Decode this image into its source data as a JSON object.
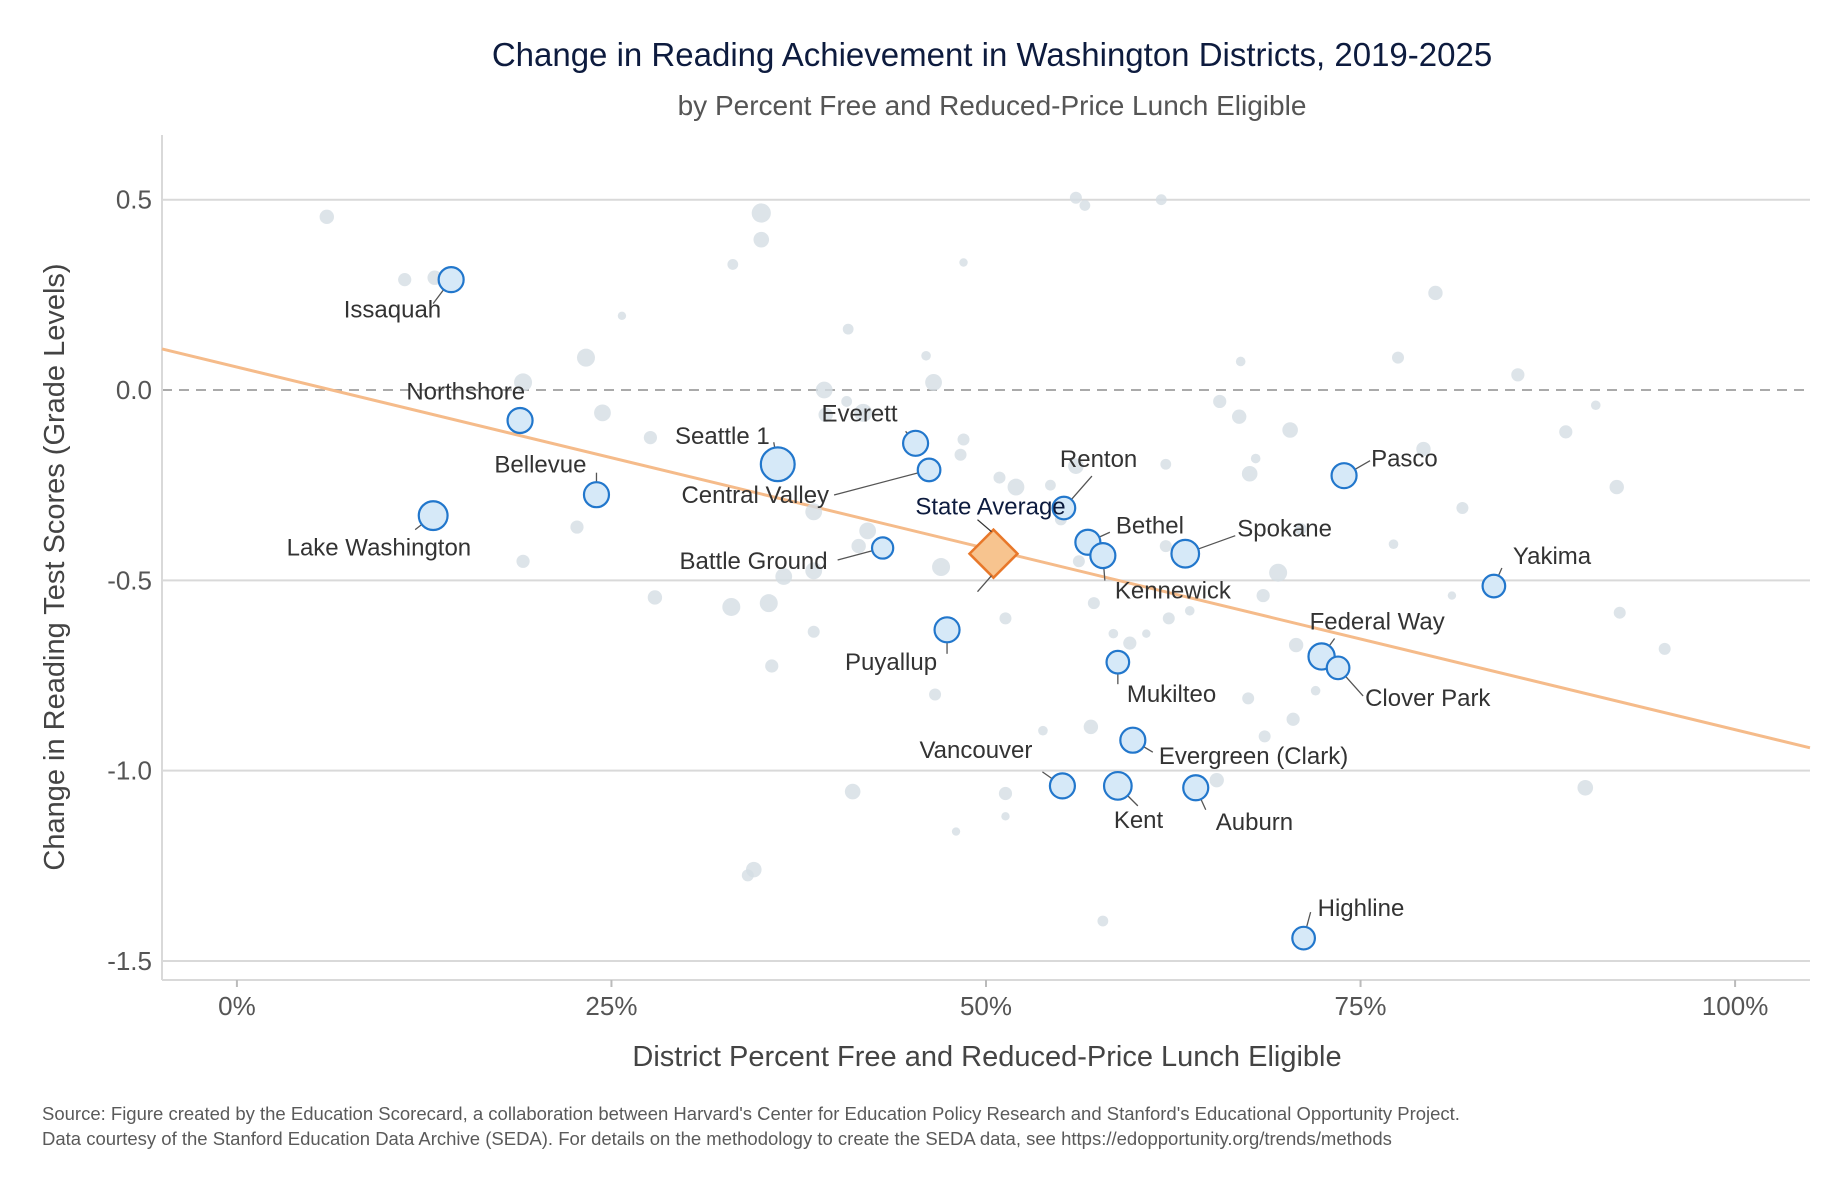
{
  "title": "Change in Reading Achievement in Washington Districts, 2019-2025",
  "subtitle": "by Percent Free and Reduced-Price Lunch Eligible",
  "source": [
    "Source: Figure created by the Education Scorecard, a collaboration between Harvard's Center for Education Policy Research and Stanford's Educational Opportunity Project.",
    "Data courtesy of the Stanford Education Data Archive (SEDA). For details on the methodology to create the SEDA data, see https://edopportunity.org/trends/methods"
  ],
  "colors": {
    "highlight_fill": "#d6e9f8",
    "highlight_stroke": "#2277cc",
    "background_point": "#d5dde4",
    "average_fill": "#f7c48f",
    "average_stroke": "#e8782a",
    "trend_line": "#f5bb8a",
    "grid": "#d9d9d9",
    "zero_line": "#aaaaaa"
  },
  "chart_data": {
    "type": "scatter",
    "title": "Change in Reading Achievement in Washington Districts, 2019-2025",
    "subtitle": "by Percent Free and Reduced-Price Lunch Eligible",
    "xlabel": "District Percent Free and Reduced-Price Lunch Eligible",
    "ylabel": "Change in Reading Test Scores (Grade Levels)",
    "xlim": [
      -0.05,
      1.05
    ],
    "ylim": [
      -1.55,
      0.67
    ],
    "x_ticks": [
      0,
      0.25,
      0.5,
      0.75,
      1.0
    ],
    "x_tick_labels": [
      "0%",
      "25%",
      "50%",
      "75%",
      "100%"
    ],
    "y_ticks": [
      0.5,
      0.0,
      -0.5,
      -1.0,
      -1.5
    ],
    "y_tick_labels": [
      "0.5",
      "0.0",
      "-0.5",
      "-1.0",
      "-1.5"
    ],
    "grid": true,
    "zero_reference_line": "dashed",
    "trend_line": {
      "x": [
        -0.05,
        1.05
      ],
      "y": [
        0.108,
        -0.94
      ]
    },
    "state_average": {
      "label": "State Average",
      "x": 0.505,
      "y": -0.43
    },
    "highlighted_districts": [
      {
        "name": "Issaquah",
        "x": 0.143,
        "y": 0.29,
        "size": 1
      },
      {
        "name": "Northshore",
        "x": 0.189,
        "y": -0.08,
        "size": 1
      },
      {
        "name": "Bellevue",
        "x": 0.24,
        "y": -0.275,
        "size": 1
      },
      {
        "name": "Lake Washington",
        "x": 0.131,
        "y": -0.33,
        "size": 1.15
      },
      {
        "name": "Seattle 1",
        "x": 0.361,
        "y": -0.195,
        "size": 1.35
      },
      {
        "name": "Everett",
        "x": 0.453,
        "y": -0.14,
        "size": 1
      },
      {
        "name": "Central Valley",
        "x": 0.462,
        "y": -0.21,
        "size": 0.9
      },
      {
        "name": "Battle Ground",
        "x": 0.431,
        "y": -0.415,
        "size": 0.85
      },
      {
        "name": "Puyallup",
        "x": 0.474,
        "y": -0.63,
        "size": 1
      },
      {
        "name": "Renton",
        "x": 0.552,
        "y": -0.31,
        "size": 0.9
      },
      {
        "name": "Bethel",
        "x": 0.568,
        "y": -0.4,
        "size": 1
      },
      {
        "name": "Kennewick",
        "x": 0.578,
        "y": -0.435,
        "size": 1
      },
      {
        "name": "Spokane",
        "x": 0.633,
        "y": -0.43,
        "size": 1.1
      },
      {
        "name": "Pasco",
        "x": 0.739,
        "y": -0.225,
        "size": 1
      },
      {
        "name": "Yakima",
        "x": 0.839,
        "y": -0.515,
        "size": 0.9
      },
      {
        "name": "Federal Way",
        "x": 0.724,
        "y": -0.7,
        "size": 1.05
      },
      {
        "name": "Clover Park",
        "x": 0.735,
        "y": -0.73,
        "size": 0.9
      },
      {
        "name": "Mukilteo",
        "x": 0.588,
        "y": -0.715,
        "size": 0.9
      },
      {
        "name": "Evergreen (Clark)",
        "x": 0.598,
        "y": -0.92,
        "size": 1
      },
      {
        "name": "Vancouver",
        "x": 0.551,
        "y": -1.04,
        "size": 1
      },
      {
        "name": "Kent",
        "x": 0.588,
        "y": -1.04,
        "size": 1.1
      },
      {
        "name": "Auburn",
        "x": 0.64,
        "y": -1.045,
        "size": 1
      },
      {
        "name": "Highline",
        "x": 0.712,
        "y": -1.44,
        "size": 0.9
      }
    ],
    "other_districts": [
      {
        "x": 0.06,
        "y": 0.455,
        "size": 0.6
      },
      {
        "x": 0.112,
        "y": 0.29,
        "size": 0.55
      },
      {
        "x": 0.132,
        "y": 0.295,
        "size": 0.6
      },
      {
        "x": 0.257,
        "y": 0.195,
        "size": 0.35
      },
      {
        "x": 0.233,
        "y": 0.085,
        "size": 0.75
      },
      {
        "x": 0.191,
        "y": 0.02,
        "size": 0.75
      },
      {
        "x": 0.244,
        "y": -0.06,
        "size": 0.7
      },
      {
        "x": 0.276,
        "y": -0.125,
        "size": 0.55
      },
      {
        "x": 0.227,
        "y": -0.36,
        "size": 0.55
      },
      {
        "x": 0.191,
        "y": -0.45,
        "size": 0.55
      },
      {
        "x": 0.279,
        "y": -0.545,
        "size": 0.6
      },
      {
        "x": 0.35,
        "y": 0.465,
        "size": 0.8
      },
      {
        "x": 0.35,
        "y": 0.395,
        "size": 0.65
      },
      {
        "x": 0.331,
        "y": 0.33,
        "size": 0.45
      },
      {
        "x": 0.408,
        "y": 0.16,
        "size": 0.45
      },
      {
        "x": 0.392,
        "y": 0.0,
        "size": 0.7
      },
      {
        "x": 0.407,
        "y": -0.03,
        "size": 0.45
      },
      {
        "x": 0.418,
        "y": -0.06,
        "size": 0.75
      },
      {
        "x": 0.393,
        "y": -0.065,
        "size": 0.6
      },
      {
        "x": 0.365,
        "y": -0.21,
        "size": 0.55
      },
      {
        "x": 0.385,
        "y": -0.32,
        "size": 0.7
      },
      {
        "x": 0.421,
        "y": -0.37,
        "size": 0.7
      },
      {
        "x": 0.415,
        "y": -0.41,
        "size": 0.6
      },
      {
        "x": 0.385,
        "y": -0.475,
        "size": 0.7
      },
      {
        "x": 0.365,
        "y": -0.49,
        "size": 0.7
      },
      {
        "x": 0.33,
        "y": -0.57,
        "size": 0.75
      },
      {
        "x": 0.355,
        "y": -0.56,
        "size": 0.75
      },
      {
        "x": 0.385,
        "y": -0.635,
        "size": 0.5
      },
      {
        "x": 0.357,
        "y": -0.725,
        "size": 0.55
      },
      {
        "x": 0.46,
        "y": 0.09,
        "size": 0.4
      },
      {
        "x": 0.465,
        "y": 0.02,
        "size": 0.7
      },
      {
        "x": 0.485,
        "y": 0.335,
        "size": 0.35
      },
      {
        "x": 0.485,
        "y": -0.13,
        "size": 0.5
      },
      {
        "x": 0.483,
        "y": -0.17,
        "size": 0.5
      },
      {
        "x": 0.509,
        "y": -0.23,
        "size": 0.5
      },
      {
        "x": 0.52,
        "y": -0.255,
        "size": 0.7
      },
      {
        "x": 0.47,
        "y": -0.465,
        "size": 0.75
      },
      {
        "x": 0.513,
        "y": -0.6,
        "size": 0.5
      },
      {
        "x": 0.466,
        "y": -0.8,
        "size": 0.5
      },
      {
        "x": 0.543,
        "y": -0.25,
        "size": 0.45
      },
      {
        "x": 0.56,
        "y": -0.2,
        "size": 0.65
      },
      {
        "x": 0.56,
        "y": 0.505,
        "size": 0.5
      },
      {
        "x": 0.566,
        "y": 0.485,
        "size": 0.45
      },
      {
        "x": 0.617,
        "y": 0.5,
        "size": 0.45
      },
      {
        "x": 0.55,
        "y": -0.34,
        "size": 0.5
      },
      {
        "x": 0.562,
        "y": -0.45,
        "size": 0.5
      },
      {
        "x": 0.572,
        "y": -0.56,
        "size": 0.5
      },
      {
        "x": 0.585,
        "y": -0.64,
        "size": 0.4
      },
      {
        "x": 0.596,
        "y": -0.665,
        "size": 0.55
      },
      {
        "x": 0.62,
        "y": -0.195,
        "size": 0.45
      },
      {
        "x": 0.62,
        "y": -0.41,
        "size": 0.5
      },
      {
        "x": 0.622,
        "y": -0.6,
        "size": 0.5
      },
      {
        "x": 0.636,
        "y": -0.58,
        "size": 0.4
      },
      {
        "x": 0.607,
        "y": -0.64,
        "size": 0.35
      },
      {
        "x": 0.656,
        "y": -0.03,
        "size": 0.55
      },
      {
        "x": 0.669,
        "y": -0.07,
        "size": 0.6
      },
      {
        "x": 0.67,
        "y": 0.075,
        "size": 0.4
      },
      {
        "x": 0.68,
        "y": -0.18,
        "size": 0.4
      },
      {
        "x": 0.676,
        "y": -0.22,
        "size": 0.65
      },
      {
        "x": 0.695,
        "y": -0.48,
        "size": 0.75
      },
      {
        "x": 0.703,
        "y": -0.105,
        "size": 0.65
      },
      {
        "x": 0.685,
        "y": -0.54,
        "size": 0.55
      },
      {
        "x": 0.71,
        "y": -0.365,
        "size": 0.5
      },
      {
        "x": 0.707,
        "y": -0.67,
        "size": 0.6
      },
      {
        "x": 0.72,
        "y": -0.79,
        "size": 0.4
      },
      {
        "x": 0.675,
        "y": -0.81,
        "size": 0.5
      },
      {
        "x": 0.686,
        "y": -0.91,
        "size": 0.5
      },
      {
        "x": 0.705,
        "y": -0.865,
        "size": 0.55
      },
      {
        "x": 0.654,
        "y": -1.025,
        "size": 0.6
      },
      {
        "x": 0.57,
        "y": -0.885,
        "size": 0.6
      },
      {
        "x": 0.538,
        "y": -0.895,
        "size": 0.4
      },
      {
        "x": 0.513,
        "y": -1.06,
        "size": 0.55
      },
      {
        "x": 0.513,
        "y": -1.12,
        "size": 0.35
      },
      {
        "x": 0.48,
        "y": -1.16,
        "size": 0.35
      },
      {
        "x": 0.411,
        "y": -1.055,
        "size": 0.65
      },
      {
        "x": 0.345,
        "y": -1.26,
        "size": 0.65
      },
      {
        "x": 0.341,
        "y": -1.275,
        "size": 0.5
      },
      {
        "x": 0.578,
        "y": -1.395,
        "size": 0.45
      },
      {
        "x": 0.775,
        "y": 0.085,
        "size": 0.5
      },
      {
        "x": 0.8,
        "y": 0.255,
        "size": 0.6
      },
      {
        "x": 0.792,
        "y": -0.155,
        "size": 0.6
      },
      {
        "x": 0.818,
        "y": -0.31,
        "size": 0.5
      },
      {
        "x": 0.772,
        "y": -0.405,
        "size": 0.4
      },
      {
        "x": 0.811,
        "y": -0.54,
        "size": 0.35
      },
      {
        "x": 0.855,
        "y": 0.04,
        "size": 0.55
      },
      {
        "x": 0.887,
        "y": -0.11,
        "size": 0.55
      },
      {
        "x": 0.907,
        "y": -0.04,
        "size": 0.4
      },
      {
        "x": 0.921,
        "y": -0.255,
        "size": 0.6
      },
      {
        "x": 0.923,
        "y": -0.585,
        "size": 0.5
      },
      {
        "x": 0.953,
        "y": -0.68,
        "size": 0.5
      },
      {
        "x": 0.9,
        "y": -1.045,
        "size": 0.65
      }
    ]
  }
}
